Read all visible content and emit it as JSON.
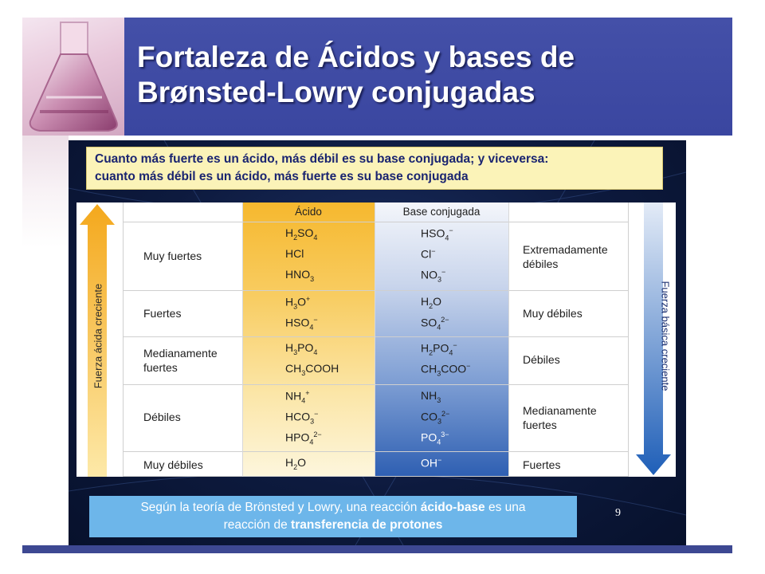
{
  "header": {
    "title_line1": "Fortaleza de Ácidos y bases de",
    "title_line2": "Brønsted-Lowry conjugadas"
  },
  "slide": {
    "intro_line1": "Cuanto más fuerte es un ácido, más débil es su base conjugada; y viceversa:",
    "intro_line2": "cuanto más débil es un ácido, más fuerte es su base conjugada",
    "table": {
      "headers": {
        "acid": "Ácido",
        "base": "Base conjugada"
      },
      "left_arrow_label": "Fuerza ácida creciente",
      "right_arrow_label": "Fuerza básica creciente",
      "rows": [
        {
          "category": "Muy fuertes",
          "base_strength": "Extremadamente débiles"
        },
        {
          "category": "Fuertes",
          "base_strength": "Muy débiles"
        },
        {
          "category": "Medianamente fuertes",
          "base_strength": "Débiles"
        },
        {
          "category": "Débiles",
          "base_strength": "Medianamente fuertes"
        },
        {
          "category": "Muy débiles",
          "base_strength": "Fuertes"
        }
      ]
    },
    "bottom_text": {
      "part1": "Según la teoría de Brönsted y Lowry, una reacción ",
      "bold1": "ácido-base",
      "part2": " es una",
      "part3": "reacción de ",
      "bold2": "transferencia de protones"
    },
    "page_number": "9"
  },
  "colors": {
    "header_blue": "#3a46a0",
    "intro_yellow": "#fbf3b8",
    "acid_orange": "#f6b82e",
    "base_blue": "#2e5fb2",
    "bottom_box": "#6db6ea"
  }
}
